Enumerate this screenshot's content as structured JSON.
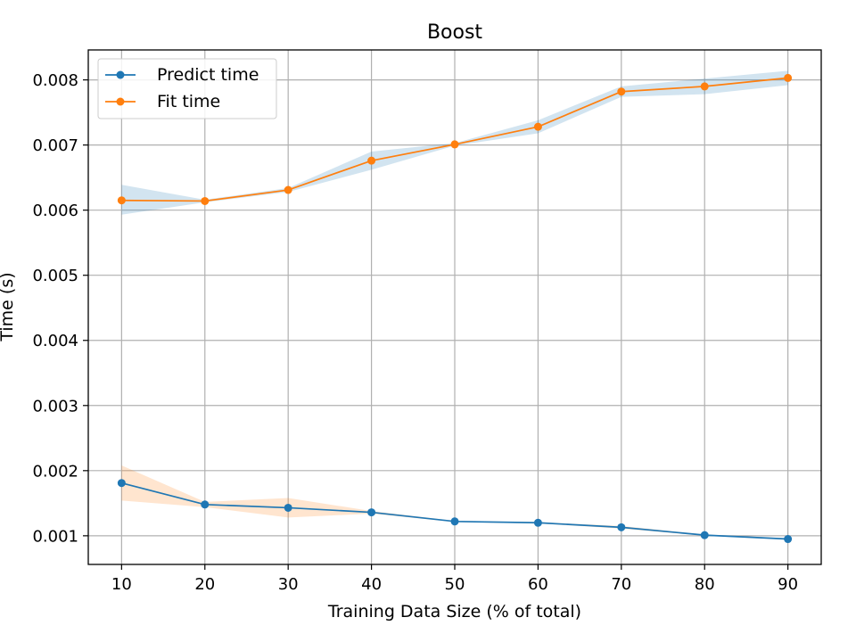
{
  "chart_data": {
    "type": "line",
    "title": "Boost",
    "xlabel": "Training Data Size (% of total)",
    "ylabel": "Time (s)",
    "x": [
      10,
      20,
      30,
      40,
      50,
      60,
      70,
      80,
      90
    ],
    "xlim": [
      6,
      94
    ],
    "ylim": [
      0.00056,
      0.00846
    ],
    "xticks": [
      10,
      20,
      30,
      40,
      50,
      60,
      70,
      80,
      90
    ],
    "yticks": [
      0.001,
      0.002,
      0.003,
      0.004,
      0.005,
      0.006,
      0.007,
      0.008
    ],
    "ytick_labels": [
      "0.001",
      "0.002",
      "0.003",
      "0.004",
      "0.005",
      "0.006",
      "0.007",
      "0.008"
    ],
    "grid": true,
    "legend_position": "top-left",
    "series": [
      {
        "name": "Predict time",
        "color": "#1f77b4",
        "band_color": "#ff7f0e",
        "values": [
          0.00181,
          0.00148,
          0.00143,
          0.00136,
          0.00122,
          0.0012,
          0.00113,
          0.00101,
          0.00095
        ],
        "band_upper": [
          0.00208,
          0.00152,
          0.00158,
          0.00138,
          0.00123,
          0.00121,
          0.00115,
          0.00102,
          0.00096
        ],
        "band_lower": [
          0.00154,
          0.00144,
          0.00128,
          0.00134,
          0.00121,
          0.00119,
          0.00111,
          0.001,
          0.00094
        ]
      },
      {
        "name": "Fit time",
        "color": "#ff7f0e",
        "band_color": "#1f77b4",
        "values": [
          0.00615,
          0.00614,
          0.00631,
          0.00676,
          0.00701,
          0.00728,
          0.00782,
          0.0079,
          0.00803
        ],
        "band_upper": [
          0.00639,
          0.00616,
          0.00634,
          0.0069,
          0.00703,
          0.00738,
          0.0079,
          0.00802,
          0.00814
        ],
        "band_lower": [
          0.00593,
          0.00612,
          0.00628,
          0.00662,
          0.00699,
          0.00718,
          0.00774,
          0.00778,
          0.00792
        ]
      }
    ]
  }
}
